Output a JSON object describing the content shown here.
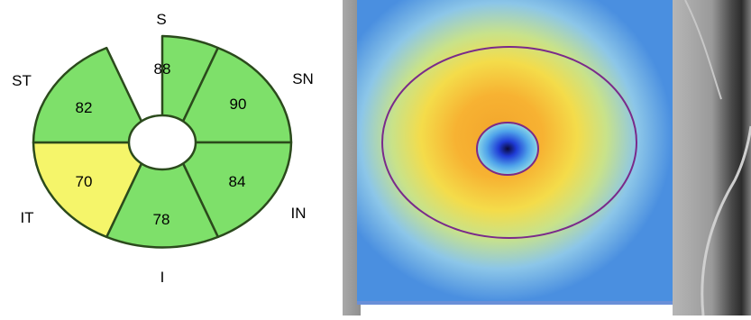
{
  "directions": {
    "superior": "S",
    "inferior": "I",
    "superotemporal": "ST",
    "superonasal": "SN",
    "inferotemporal": "IT",
    "inferonasal": "IN"
  },
  "sectors": {
    "superior": {
      "value": "88",
      "status_color": "#7ee06a"
    },
    "superonasal": {
      "value": "90",
      "status_color": "#7ee06a"
    },
    "inferonasal": {
      "value": "84",
      "status_color": "#7ee06a"
    },
    "inferior": {
      "value": "78",
      "status_color": "#7ee06a"
    },
    "inferotemporal": {
      "value": "70",
      "status_color": "#f5f56a"
    },
    "superotemporal": {
      "value": "82",
      "status_color": "#7ee06a"
    }
  },
  "colors": {
    "sector_outline": "#2b4a1c",
    "measurement_circle": "#7a2a8a"
  }
}
